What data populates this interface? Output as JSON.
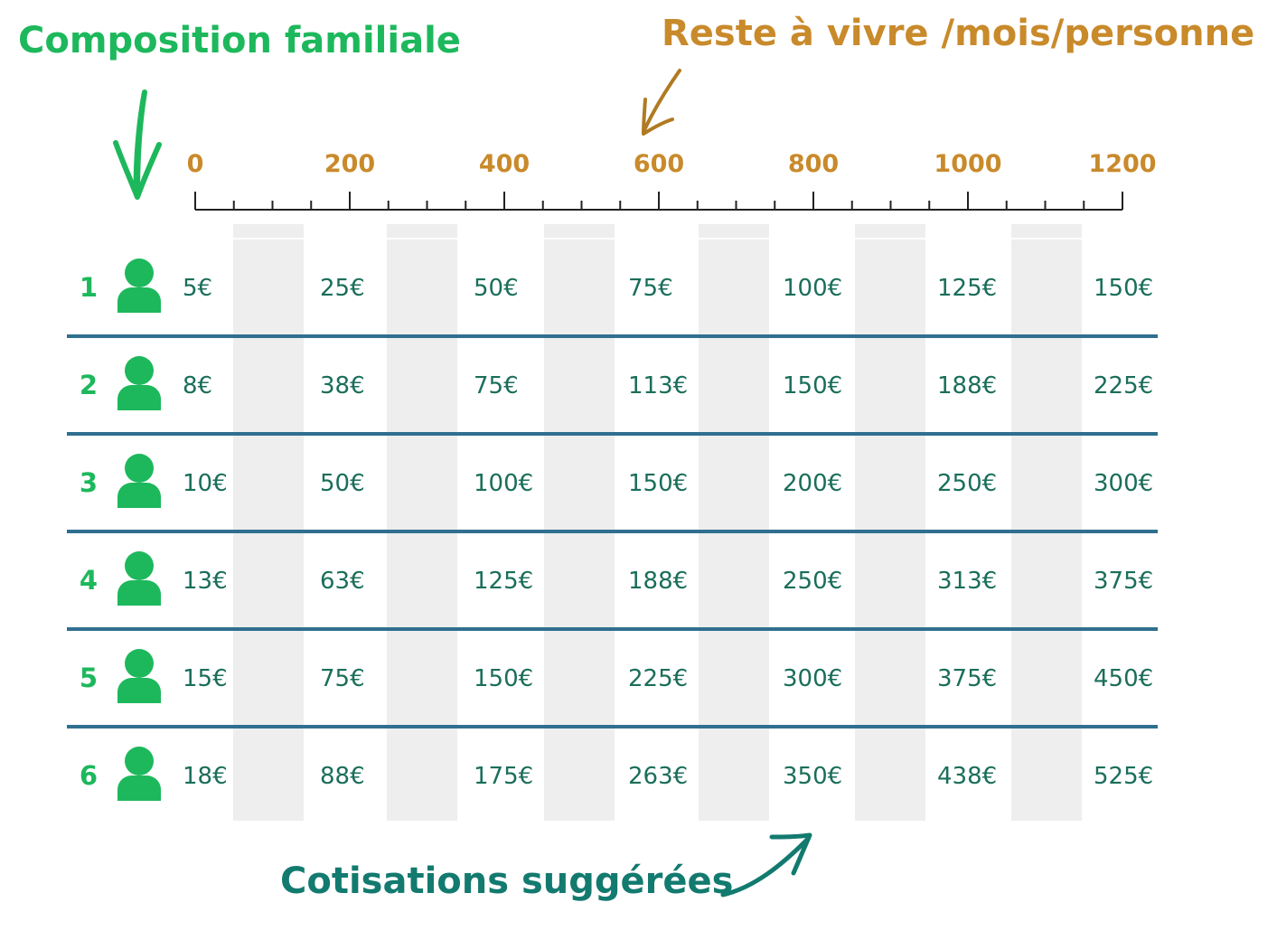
{
  "titles": {
    "family": "Composition familiale",
    "income": "Reste à vivre /mois/personne",
    "contributions": "Cotisations suggérées"
  },
  "colors": {
    "family": "#1db85c",
    "income": "#c98a2b",
    "contributions": "#137a6f",
    "divider": "#2f6f8f",
    "band": "#eeeeee",
    "cell_text": "#1a6e5a"
  },
  "icons": {
    "person": "person-icon"
  },
  "chart_data": {
    "type": "table",
    "x_axis": {
      "ticks": [
        "0",
        "200",
        "400",
        "600",
        "800",
        "1000",
        "1200"
      ],
      "range": [
        0,
        1200
      ],
      "minor_step": 50
    },
    "rows": [
      {
        "label": "1",
        "values": [
          "5€",
          "25€",
          "50€",
          "75€",
          "100€",
          "125€",
          "150€"
        ]
      },
      {
        "label": "2",
        "values": [
          "8€",
          "38€",
          "75€",
          "113€",
          "150€",
          "188€",
          "225€"
        ]
      },
      {
        "label": "3",
        "values": [
          "10€",
          "50€",
          "100€",
          "150€",
          "200€",
          "250€",
          "300€"
        ]
      },
      {
        "label": "4",
        "values": [
          "13€",
          "63€",
          "125€",
          "188€",
          "250€",
          "313€",
          "375€"
        ]
      },
      {
        "label": "5",
        "values": [
          "15€",
          "75€",
          "150€",
          "225€",
          "300€",
          "375€",
          "450€"
        ]
      },
      {
        "label": "6",
        "values": [
          "18€",
          "88€",
          "175€",
          "263€",
          "350€",
          "438€",
          "525€"
        ]
      }
    ]
  }
}
